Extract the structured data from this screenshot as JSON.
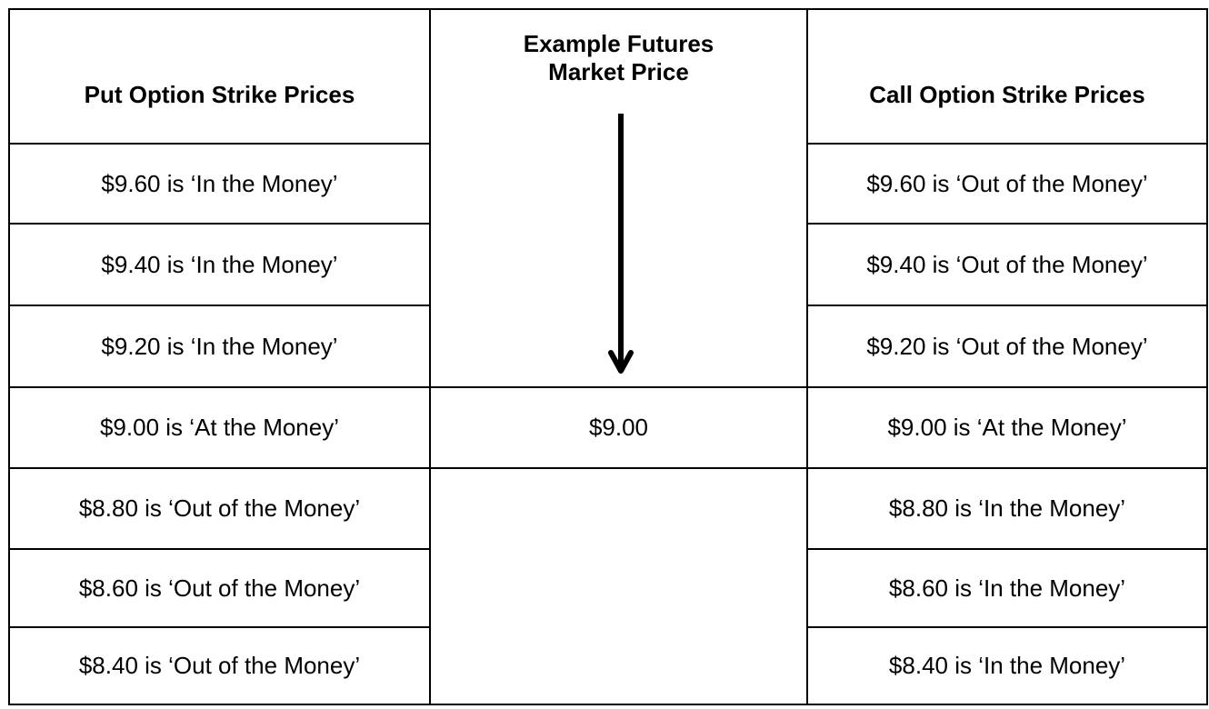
{
  "table": {
    "headers": [
      "Put Option Strike Prices",
      "Example Futures Market Price",
      "Call Option Strike Prices"
    ],
    "rows": [
      [
        "$9.60 is ‘In the Money’",
        "$9.60 is ‘Out of the Money’"
      ],
      [
        "$9.40 is ‘In the Money’",
        "$9.40 is ‘Out of the Money’"
      ],
      [
        "$9.20 is ‘In the Money’",
        "$9.20 is ‘Out of the Money’"
      ],
      [
        "$9.00 is ‘At the Money’",
        "$9.00 is ‘At the Money’"
      ],
      [
        "$8.80 is ‘Out of the Money’",
        "$8.80 is ‘In the Money’"
      ],
      [
        "$8.60 is ‘Out of the Money’",
        "$8.60 is ‘In the Money’"
      ],
      [
        "$8.40 is ‘Out of the Money’",
        "$8.40 is ‘In the Money’"
      ]
    ],
    "market_price": "$9.00"
  }
}
